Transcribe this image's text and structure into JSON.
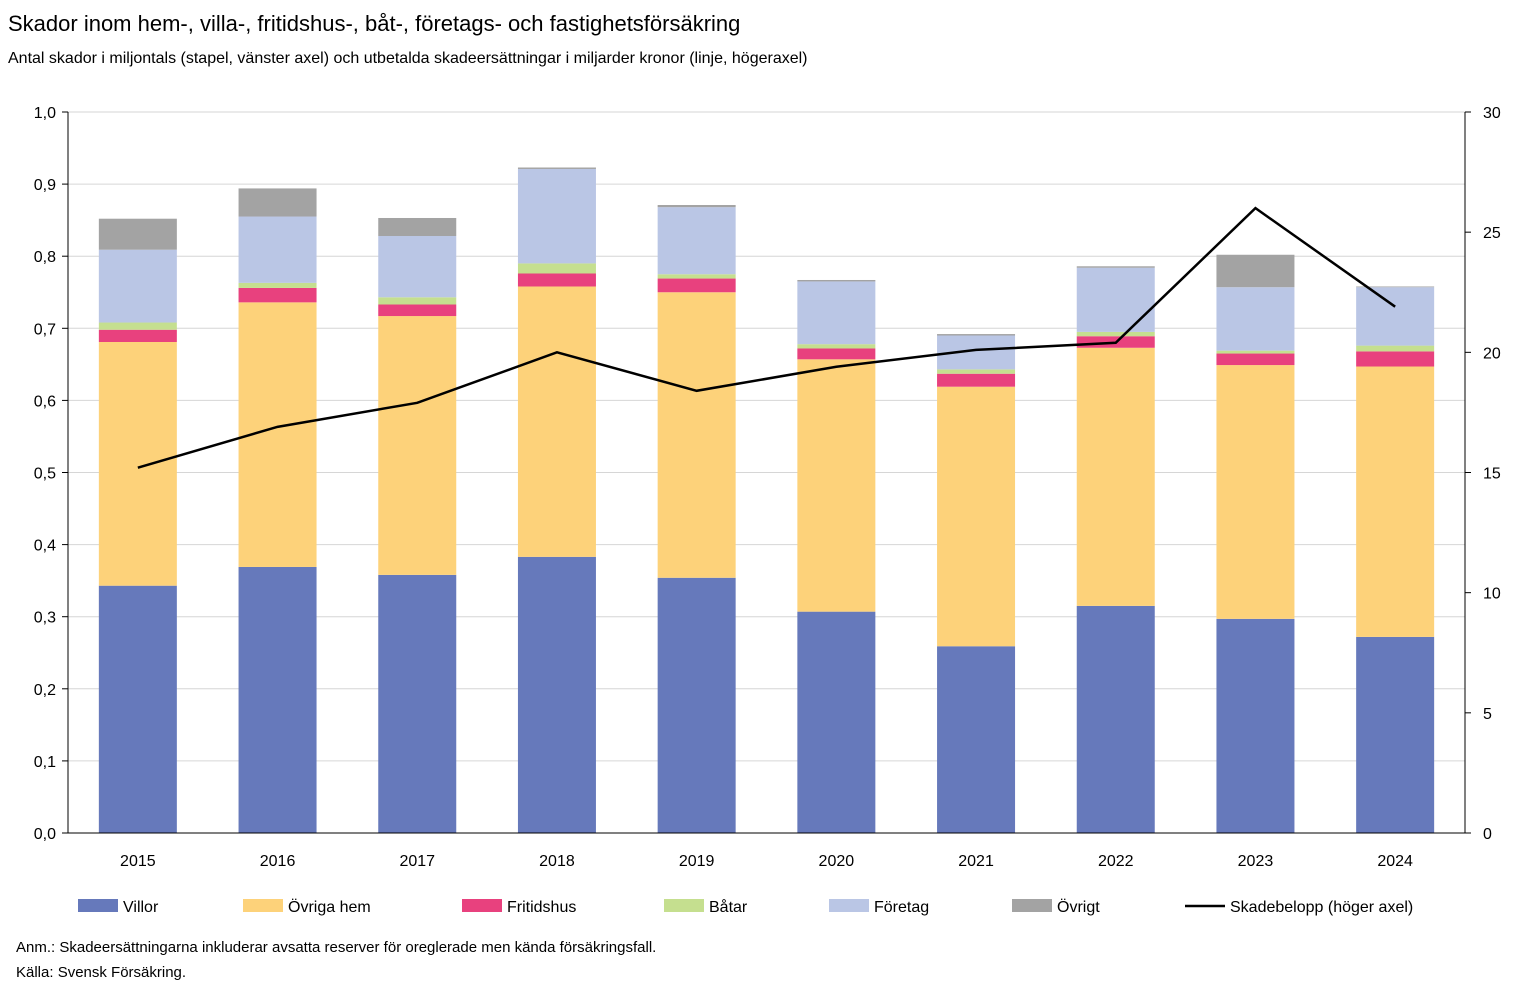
{
  "chart_data": {
    "type": "bar",
    "stacked": true,
    "title": "Skador inom hem-, villa-, fritidshus-, båt-, företags- och fastighetsförsäkring",
    "subtitle": "Antal skador i miljontals (stapel, vänster axel) och utbetalda skadeersättningar i miljarder kronor (linje, högeraxel)",
    "categories": [
      "2015",
      "2016",
      "2017",
      "2018",
      "2019",
      "2020",
      "2021",
      "2022",
      "2023",
      "2024"
    ],
    "y_left": {
      "min": 0,
      "max": 1.0,
      "step": 0.1,
      "ticks": [
        "0,0",
        "0,1",
        "0,2",
        "0,3",
        "0,4",
        "0,5",
        "0,6",
        "0,7",
        "0,8",
        "0,9",
        "1,0"
      ]
    },
    "y_right": {
      "min": 0,
      "max": 30,
      "step": 5,
      "ticks": [
        "0",
        "5",
        "10",
        "15",
        "20",
        "25",
        "30"
      ]
    },
    "grid": true,
    "legend_position": "bottom",
    "series": [
      {
        "name": "Villor",
        "color": "#6679bb",
        "values": [
          0.343,
          0.369,
          0.358,
          0.383,
          0.354,
          0.307,
          0.259,
          0.315,
          0.297,
          0.272
        ]
      },
      {
        "name": "Övriga hem",
        "color": "#fdd27a",
        "values": [
          0.338,
          0.367,
          0.359,
          0.375,
          0.396,
          0.35,
          0.36,
          0.358,
          0.352,
          0.375
        ]
      },
      {
        "name": "Fritidshus",
        "color": "#e8417e",
        "values": [
          0.017,
          0.02,
          0.016,
          0.018,
          0.019,
          0.015,
          0.018,
          0.016,
          0.016,
          0.021
        ]
      },
      {
        "name": "Båtar",
        "color": "#c5df8f",
        "values": [
          0.01,
          0.007,
          0.01,
          0.014,
          0.006,
          0.006,
          0.006,
          0.006,
          0.004,
          0.008
        ]
      },
      {
        "name": "Företag",
        "color": "#bac6e5",
        "values": [
          0.101,
          0.092,
          0.085,
          0.131,
          0.093,
          0.087,
          0.047,
          0.089,
          0.088,
          0.081
        ]
      },
      {
        "name": "Övrigt",
        "color": "#a3a3a3",
        "values": [
          0.043,
          0.039,
          0.025,
          0.002,
          0.003,
          0.002,
          0.002,
          0.002,
          0.045,
          0.001
        ]
      }
    ],
    "line_series": {
      "name": "Skadebelopp (höger axel)",
      "color": "#000000",
      "axis": "right",
      "values": [
        15.2,
        16.9,
        17.9,
        20.0,
        18.4,
        19.4,
        20.1,
        20.4,
        26.0,
        21.9
      ]
    }
  },
  "footnote": "Anm.: Skadeersättningarna inkluderar avsatta reserver för oreglerade men kända försäkringsfall.",
  "source": "Källa: Svensk Försäkring."
}
